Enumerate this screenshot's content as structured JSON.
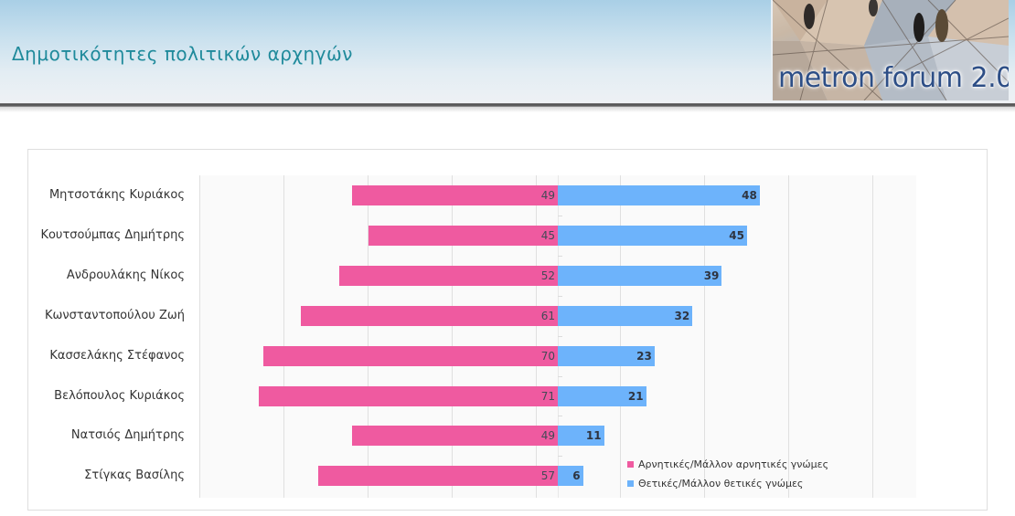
{
  "header": {
    "title": "Δημοτικότητες πολιτικών αρχηγών",
    "logo_text": "metron forum 2.0"
  },
  "colors": {
    "negative": "#ef5aa0",
    "positive": "#6db3fb",
    "title": "#1f8a9b"
  },
  "legend": [
    {
      "label": "Αρνητικές/Μάλλον αρνητικές γνώμες",
      "color": "#ef5aa0"
    },
    {
      "label": "Θετικές/Μάλλον θετικές γνώμες",
      "color": "#6db3fb"
    }
  ],
  "chart_data": {
    "type": "bar",
    "orientation": "horizontal-diverging",
    "title": "Δημοτικότητες πολιτικών αρχηγών",
    "xlabel": "",
    "ylabel": "",
    "categories": [
      "Μητσοτάκης Κυριάκος",
      "Κουτσούμπας Δημήτρης",
      "Ανδρουλάκης Νίκος",
      "Κωνσταντοπούλου Ζωή",
      "Κασσελάκης Στέφανος",
      "Βελόπουλος Κυριάκος",
      "Νατσιός Δημήτρης",
      "Στίγκας Βασίλης"
    ],
    "series": [
      {
        "name": "Αρνητικές/Μάλλον αρνητικές γνώμες",
        "color": "#ef5aa0",
        "values": [
          49,
          45,
          52,
          61,
          70,
          71,
          49,
          57
        ]
      },
      {
        "name": "Θετικές/Μάλλον θετικές γνώμες",
        "color": "#6db3fb",
        "values": [
          48,
          45,
          39,
          32,
          23,
          21,
          11,
          6
        ]
      }
    ],
    "xlim": [
      -85,
      85
    ],
    "grid": true,
    "data_labels": true,
    "legend_position": "bottom-right-inside"
  }
}
